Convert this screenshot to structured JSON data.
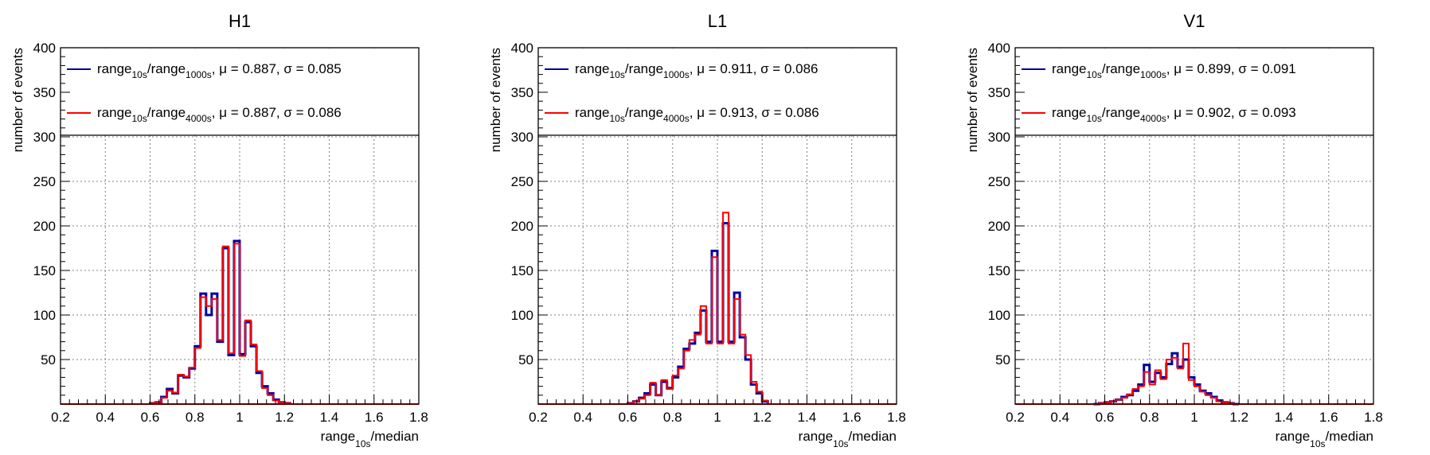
{
  "colors": {
    "series1": "#0000a0",
    "series2": "#ff0000",
    "axis": "#000000",
    "grid": "#808080"
  },
  "panels": [
    {
      "title": "H1",
      "xlabel_main": "range",
      "xlabel_sub": "10s",
      "xlabel_tail": "/median",
      "ylabel": "number of events",
      "legend": [
        {
          "a": "range",
          "a_sub": "10s",
          "slash": "/range",
          "b_sub": "1000s",
          "tail": ", μ = 0.887, σ = 0.085"
        },
        {
          "a": "range",
          "a_sub": "10s",
          "slash": "/range",
          "b_sub": "4000s",
          "tail": ", μ = 0.887, σ = 0.086"
        }
      ]
    },
    {
      "title": "L1",
      "xlabel_main": "range",
      "xlabel_sub": "10s",
      "xlabel_tail": "/median",
      "ylabel": "number of events",
      "legend": [
        {
          "a": "range",
          "a_sub": "10s",
          "slash": "/range",
          "b_sub": "1000s",
          "tail": ", μ = 0.911, σ = 0.086"
        },
        {
          "a": "range",
          "a_sub": "10s",
          "slash": "/range",
          "b_sub": "4000s",
          "tail": ", μ = 0.913, σ = 0.086"
        }
      ]
    },
    {
      "title": "V1",
      "xlabel_main": "range",
      "xlabel_sub": "10s",
      "xlabel_tail": "/median",
      "ylabel": "number of events",
      "legend": [
        {
          "a": "range",
          "a_sub": "10s",
          "slash": "/range",
          "b_sub": "1000s",
          "tail": ", μ = 0.899, σ = 0.091"
        },
        {
          "a": "range",
          "a_sub": "10s",
          "slash": "/range",
          "b_sub": "4000s",
          "tail": ", μ = 0.902, σ = 0.093"
        }
      ]
    }
  ],
  "chart_data": [
    {
      "type": "bar",
      "title": "H1",
      "xlabel": "range_10s/median",
      "ylabel": "number of events",
      "xlim": [
        0.2,
        1.8
      ],
      "ylim": [
        0,
        400
      ],
      "xticks": [
        "0.2",
        "0.4",
        "0.6",
        "0.8",
        "1",
        "1.2",
        "1.4",
        "1.6",
        "1.8"
      ],
      "yticks": [
        "50",
        "100",
        "150",
        "200",
        "250",
        "300",
        "350",
        "400"
      ],
      "bin_start": 0.6,
      "bin_width": 0.025,
      "series": [
        {
          "name": "range10s/range1000s, μ = 0.887, σ = 0.085",
          "values": [
            1,
            2,
            8,
            17,
            12,
            32,
            30,
            40,
            65,
            124,
            100,
            124,
            70,
            175,
            55,
            183,
            56,
            92,
            65,
            35,
            20,
            12,
            5,
            2,
            1
          ]
        },
        {
          "name": "range10s/range4000s, μ = 0.887, σ = 0.086",
          "values": [
            1,
            2,
            7,
            15,
            13,
            33,
            31,
            41,
            63,
            120,
            110,
            118,
            72,
            177,
            57,
            180,
            54,
            94,
            67,
            37,
            18,
            10,
            4,
            2,
            1
          ]
        }
      ],
      "grid": true,
      "legend": "top"
    },
    {
      "type": "bar",
      "title": "L1",
      "xlabel": "range_10s/median",
      "ylabel": "number of events",
      "xlim": [
        0.2,
        1.8
      ],
      "ylim": [
        0,
        400
      ],
      "xticks": [
        "0.2",
        "0.4",
        "0.6",
        "0.8",
        "1",
        "1.2",
        "1.4",
        "1.6",
        "1.8"
      ],
      "yticks": [
        "50",
        "100",
        "150",
        "200",
        "250",
        "300",
        "350",
        "400"
      ],
      "bin_start": 0.6,
      "bin_width": 0.025,
      "series": [
        {
          "name": "range10s/range1000s, μ = 0.911, σ = 0.086",
          "values": [
            1,
            3,
            7,
            12,
            22,
            10,
            25,
            18,
            30,
            42,
            62,
            68,
            80,
            105,
            70,
            172,
            70,
            203,
            70,
            125,
            75,
            50,
            22,
            12,
            3
          ]
        },
        {
          "name": "range10s/range4000s, μ = 0.913, σ = 0.086",
          "values": [
            1,
            3,
            6,
            10,
            24,
            10,
            27,
            17,
            32,
            40,
            60,
            72,
            78,
            110,
            68,
            165,
            68,
            215,
            68,
            118,
            78,
            55,
            25,
            14,
            4
          ]
        }
      ],
      "grid": true,
      "legend": "top"
    },
    {
      "type": "bar",
      "title": "V1",
      "xlabel": "range_10s/median",
      "ylabel": "number of events",
      "xlim": [
        0.2,
        1.8
      ],
      "ylim": [
        0,
        400
      ],
      "xticks": [
        "0.2",
        "0.4",
        "0.6",
        "0.8",
        "1",
        "1.2",
        "1.4",
        "1.6",
        "1.8"
      ],
      "yticks": [
        "50",
        "100",
        "150",
        "200",
        "250",
        "300",
        "350",
        "400"
      ],
      "bin_start": 0.55,
      "bin_width": 0.025,
      "series": [
        {
          "name": "range10s/range1000s, μ = 0.899, σ = 0.091",
          "values": [
            0,
            1,
            2,
            3,
            5,
            8,
            10,
            15,
            22,
            44,
            25,
            35,
            30,
            45,
            57,
            42,
            50,
            30,
            22,
            15,
            12,
            8,
            4,
            2,
            1,
            0
          ]
        },
        {
          "name": "range10s/range4000s, μ = 0.902, σ = 0.093",
          "values": [
            0,
            1,
            2,
            3,
            5,
            7,
            11,
            17,
            20,
            36,
            22,
            38,
            28,
            50,
            52,
            40,
            68,
            27,
            20,
            14,
            10,
            7,
            3,
            2,
            1,
            0
          ]
        }
      ],
      "grid": true,
      "legend": "top"
    }
  ]
}
